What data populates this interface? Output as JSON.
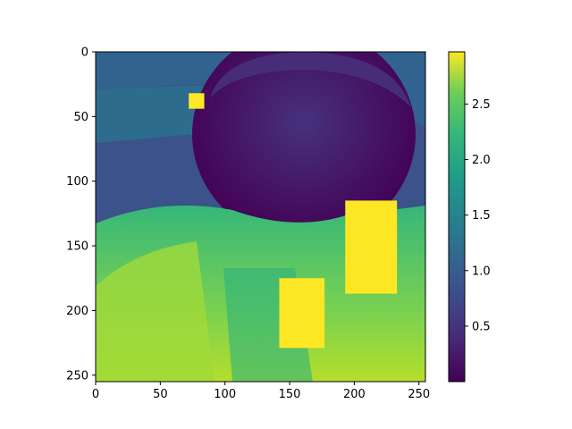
{
  "chart_data": {
    "type": "heatmap",
    "title": "",
    "xlabel": "",
    "ylabel": "",
    "xlim": [
      0,
      255
    ],
    "ylim": [
      255,
      0
    ],
    "x_ticks": [
      0,
      50,
      100,
      150,
      200,
      250
    ],
    "y_ticks": [
      0,
      50,
      100,
      150,
      200,
      250
    ],
    "colormap": "viridis",
    "colorbar": {
      "range": [
        0.0,
        2.97
      ],
      "ticks": [
        0.5,
        1.0,
        1.5,
        2.0,
        2.5
      ]
    },
    "bright_rectangles": [
      {
        "x0": 72,
        "y0": 32,
        "x1": 84,
        "y1": 44,
        "value": 2.97
      },
      {
        "x0": 193,
        "y0": 115,
        "x1": 233,
        "y1": 187,
        "value": 2.97
      },
      {
        "x0": 142,
        "y0": 175,
        "x1": 177,
        "y1": 229,
        "value": 2.97
      }
    ],
    "image_description_regions": {
      "background_upper": 0.7,
      "face": 0.15,
      "jacket": 2.2
    }
  },
  "colors": {
    "viridis_low": "#440154",
    "viridis_25": "#3b528b",
    "viridis_50": "#21918c",
    "viridis_75": "#5ec962",
    "viridis_high": "#fde725"
  }
}
